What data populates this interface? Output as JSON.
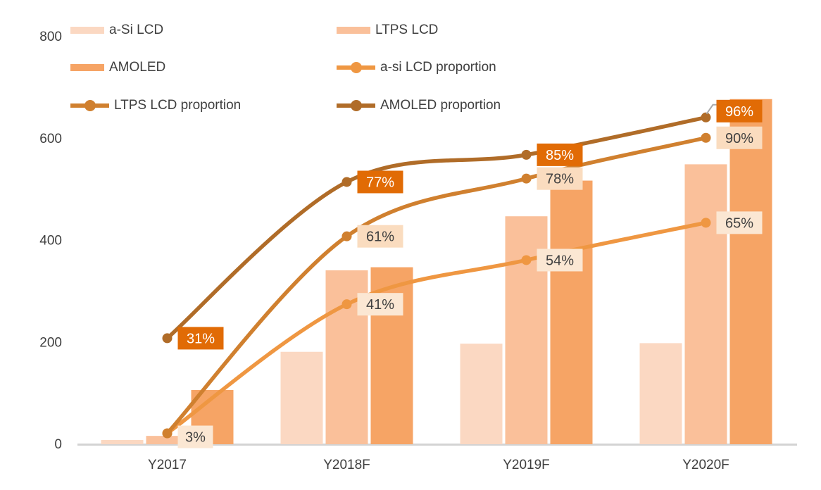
{
  "chart_data": {
    "type": "bar+line",
    "title": "",
    "categories": [
      "Y2017",
      "Y2018F",
      "Y2019F",
      "Y2020F"
    ],
    "y_axis": {
      "ticks": [
        0,
        200,
        400,
        600,
        800
      ],
      "min": 0,
      "max": 800,
      "gridlines": false
    },
    "y2_axis": {
      "min": 0,
      "max": 120,
      "unit": "%",
      "visible": false
    },
    "bar_series": [
      {
        "name": "a-Si LCD",
        "color": "#FBD8C2",
        "values": [
          7,
          180,
          196,
          197
        ]
      },
      {
        "name": "LTPS LCD",
        "color": "#FAC09A",
        "values": [
          15,
          340,
          446,
          548
        ]
      },
      {
        "name": "AMOLED",
        "color": "#F6A465",
        "values": [
          105,
          346,
          516,
          676
        ]
      }
    ],
    "line_series": [
      {
        "name": "a-si LCD proportion",
        "color": "#EF9742",
        "values": [
          3,
          41,
          54,
          65
        ],
        "labels": [
          "3%",
          "41%",
          "54%",
          "65%"
        ],
        "label_bg": "#FBE7D3",
        "label_fg": "#404040",
        "label_dy": [
          5,
          0,
          0,
          0
        ],
        "leader_last": false
      },
      {
        "name": "LTPS LCD proportion",
        "color": "#D0802F",
        "values": [
          3,
          61,
          78,
          90
        ],
        "labels": [
          "",
          "61%",
          "78%",
          "90%"
        ],
        "label_bg": "#FADCBF",
        "label_fg": "#404040",
        "label_dy": [
          0,
          0,
          0,
          0
        ],
        "leader_last": false
      },
      {
        "name": "AMOLED proportion",
        "color": "#B06C28",
        "values": [
          31,
          77,
          85,
          96
        ],
        "labels": [
          "31%",
          "77%",
          "85%",
          "96%"
        ],
        "label_bg": "#E16B05",
        "label_fg": "#FFFFFF",
        "label_dy": [
          0,
          0,
          0,
          -9
        ],
        "leader_last": true
      }
    ],
    "legend": {
      "position": "top-left",
      "columns": 2,
      "order": [
        "a-Si LCD",
        "LTPS LCD",
        "AMOLED",
        "a-si LCD proportion",
        "LTPS LCD proportion",
        "AMOLED proportion"
      ]
    },
    "colors": {
      "axis_line": "#D3D3D3",
      "text": "#3F3F3F",
      "leader_line": "#A9A9A9",
      "background": "#FFFFFF"
    }
  }
}
